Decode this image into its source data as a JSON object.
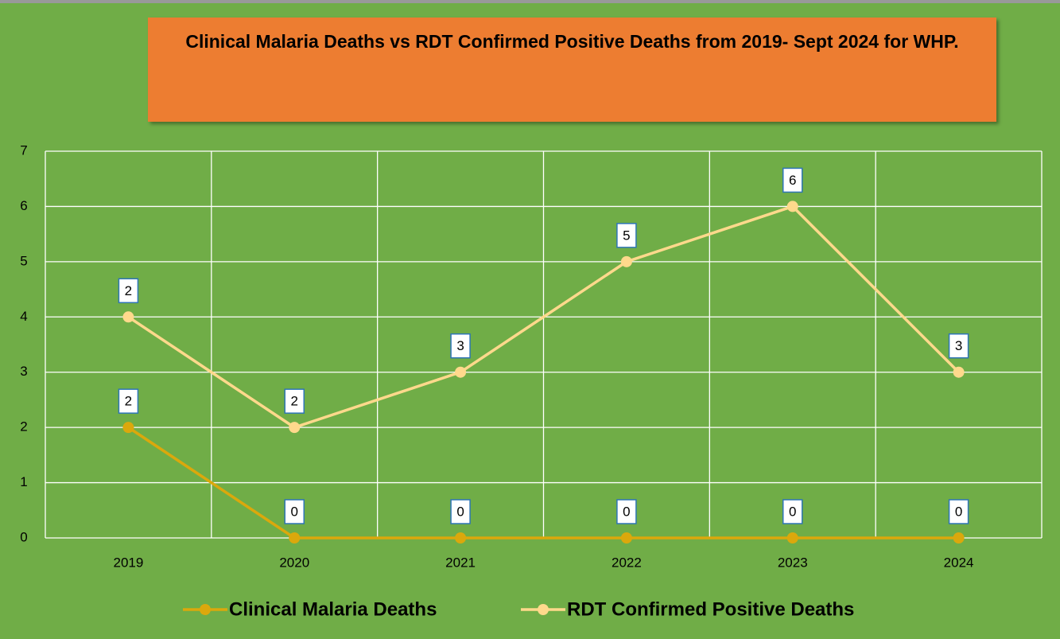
{
  "chart_data": {
    "type": "line",
    "stacked": true,
    "title": "Clinical Malaria Deaths vs RDT Confirmed Positive Deaths from 2019- Sept 2024 for WHP.",
    "categories": [
      "2019",
      "2020",
      "2021",
      "2022",
      "2023",
      "2024"
    ],
    "series": [
      {
        "name": "Clinical Malaria Deaths",
        "color": "#dba80c",
        "values": [
          2,
          0,
          0,
          0,
          0,
          0
        ]
      },
      {
        "name": "RDT Confirmed Positive Deaths",
        "color": "#ffd98c",
        "values": [
          2,
          2,
          3,
          5,
          6,
          3
        ]
      }
    ],
    "ylim": [
      0,
      7
    ],
    "yticks": [
      0,
      1,
      2,
      3,
      4,
      5,
      6,
      7
    ],
    "grid": true,
    "legend": "bottom"
  }
}
